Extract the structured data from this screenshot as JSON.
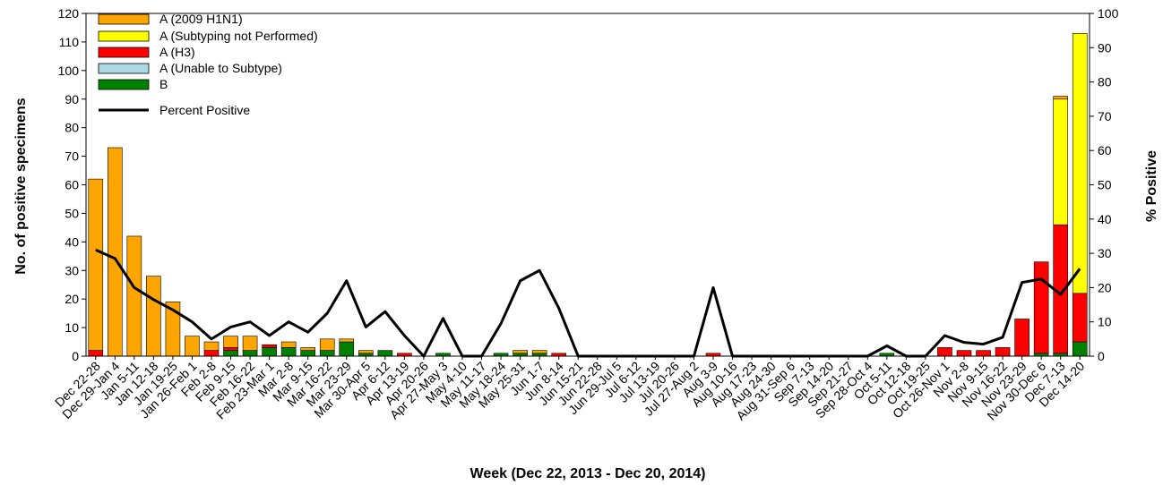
{
  "chart_data": {
    "type": "bar",
    "stacked": true,
    "xlabel": "Week (Dec 22, 2013 - Dec 20, 2014)",
    "ylabel": "No. of positive specimens",
    "y2label": "% Positive",
    "ylim": [
      0,
      120
    ],
    "y2lim": [
      0,
      100
    ],
    "yticks": [
      0,
      10,
      20,
      30,
      40,
      50,
      60,
      70,
      80,
      90,
      100,
      110,
      120
    ],
    "y2ticks": [
      0,
      10,
      20,
      30,
      40,
      50,
      60,
      70,
      80,
      90,
      100
    ],
    "legend_position": "top-left",
    "grid": false,
    "categories": [
      "Dec 22-28",
      "Dec 29-Jan 4",
      "Jan 5-11",
      "Jan 12-18",
      "Jan 19-25",
      "Jan 26-Feb 1",
      "Feb 2-8",
      "Feb 9-15",
      "Feb 16-22",
      "Feb 23-Mar 1",
      "Mar 2-8",
      "Mar 9-15",
      "Mar 16-22",
      "Mar 23-29",
      "Mar 30-Apr 5",
      "Apr 6-12",
      "Apr 13-19",
      "Apr 20-26",
      "Apr 27-May 3",
      "May 4-10",
      "May 11-17",
      "May 18-24",
      "May 25-31",
      "Jun 1-7",
      "Jun 8-14",
      "Jun 15-21",
      "Jun 22-28",
      "Jun 29-Jul 5",
      "Jul 6-12",
      "Jul 13-19",
      "Jul 20-26",
      "Jul 27-Aug 2",
      "Aug 3-9",
      "Aug 10-16",
      "Aug 17-23",
      "Aug 24-30",
      "Aug 31-Sep 6",
      "Sep 7-13",
      "Sep 14-20",
      "Sep 21-27",
      "Sep 28-Oct 4",
      "Oct 5-11",
      "Oct 12-18",
      "Oct 19-25",
      "Oct 26-Nov 1",
      "Nov 2-8",
      "Nov 9-15",
      "Nov 16-22",
      "Nov 23-29",
      "Nov 30-Dec 6",
      "Dec 7-13",
      "Dec 14-20"
    ],
    "series": [
      {
        "name": "B",
        "color": "#008000",
        "values": [
          0,
          0,
          0,
          0,
          0,
          0,
          0,
          2,
          2,
          3,
          3,
          2,
          2,
          5,
          1,
          2,
          0,
          0,
          1,
          0,
          0,
          1,
          1,
          1,
          0,
          0,
          0,
          0,
          0,
          0,
          0,
          0,
          0,
          0,
          0,
          0,
          0,
          0,
          0,
          0,
          0,
          1,
          0,
          0,
          0,
          0,
          0,
          0,
          0,
          1,
          1,
          5
        ]
      },
      {
        "name": "A (Unable to Subtype)",
        "color": "#add8e6",
        "values": [
          0,
          0,
          0,
          0,
          0,
          0,
          0,
          0,
          0,
          0,
          0,
          0,
          0,
          0,
          0,
          0,
          0,
          0,
          0,
          0,
          0,
          0,
          0,
          0,
          0,
          0,
          0,
          0,
          0,
          0,
          0,
          0,
          0,
          0,
          0,
          0,
          0,
          0,
          0,
          0,
          0,
          0,
          0,
          0,
          0,
          0,
          0,
          0,
          0,
          0,
          0,
          0
        ]
      },
      {
        "name": "A (H3)",
        "color": "#ff0000",
        "values": [
          2,
          0,
          0,
          0,
          0,
          0,
          2,
          1,
          0,
          1,
          0,
          0,
          0,
          0,
          0,
          0,
          1,
          0,
          0,
          0,
          0,
          0,
          0,
          0,
          1,
          0,
          0,
          0,
          0,
          0,
          0,
          0,
          1,
          0,
          0,
          0,
          0,
          0,
          0,
          0,
          0,
          0,
          0,
          0,
          3,
          2,
          2,
          3,
          13,
          32,
          45,
          17
        ]
      },
      {
        "name": "A (Subtyping not Performed)",
        "color": "#ffff00",
        "values": [
          0,
          0,
          0,
          0,
          0,
          0,
          0,
          0,
          0,
          0,
          0,
          0,
          0,
          0,
          0,
          0,
          0,
          0,
          0,
          0,
          0,
          0,
          0,
          0,
          0,
          0,
          0,
          0,
          0,
          0,
          0,
          0,
          0,
          0,
          0,
          0,
          0,
          0,
          0,
          0,
          0,
          0,
          0,
          0,
          0,
          0,
          0,
          0,
          0,
          0,
          44,
          91
        ]
      },
      {
        "name": "A (2009 H1N1)",
        "color": "#ffa500",
        "values": [
          60,
          73,
          42,
          28,
          19,
          7,
          3,
          4,
          5,
          0,
          2,
          1,
          4,
          1,
          1,
          0,
          0,
          0,
          0,
          0,
          0,
          0,
          1,
          1,
          0,
          0,
          0,
          0,
          0,
          0,
          0,
          0,
          0,
          0,
          0,
          0,
          0,
          0,
          0,
          0,
          0,
          0,
          0,
          0,
          0,
          0,
          0,
          0,
          0,
          0,
          1,
          0
        ]
      }
    ],
    "line": {
      "name": "Percent Positive",
      "color": "#000000",
      "axis": "right",
      "values": [
        31,
        28.5,
        20,
        16.5,
        13.5,
        10,
        5,
        8.5,
        10,
        6,
        10,
        7,
        12.5,
        22,
        8.5,
        13,
        6,
        0,
        11,
        0,
        0,
        9.5,
        22,
        25,
        14,
        0,
        0,
        0,
        0,
        0,
        0,
        0,
        20,
        0,
        0,
        0,
        0,
        0,
        0,
        0,
        0,
        3,
        0,
        0,
        6,
        4,
        3.5,
        5.5,
        21.5,
        22.5,
        18,
        25.5
      ]
    },
    "legend_order": [
      "A (2009 H1N1)",
      "A (Subtyping not Performed)",
      "A (H3)",
      "A (Unable to Subtype)",
      "B",
      "Percent Positive"
    ]
  }
}
